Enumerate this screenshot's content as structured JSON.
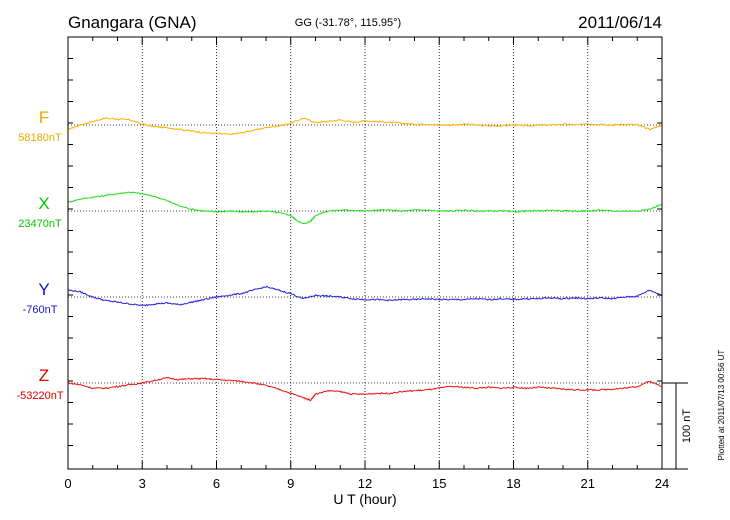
{
  "chart_data": {
    "type": "line",
    "title": "Gnangara (GNA)",
    "subtitle": "GG (-31.78°, 115.95°)",
    "date": "2011/06/14",
    "xlabel": "U T (hour)",
    "xlim": [
      0,
      24
    ],
    "x_ticks": [
      "0",
      "3",
      "6",
      "9",
      "12",
      "15",
      "18",
      "21",
      "24"
    ],
    "scale_bar": {
      "label": "100 nT",
      "value": 100
    },
    "footer": "Plotted at 2011/07/13 00:56 UT",
    "grid": true,
    "series": [
      {
        "name": "F",
        "baseline_label": "58180nT",
        "color": "#f0a800",
        "line_color": "#ffb000",
        "x": [
          0,
          0.5,
          1,
          1.5,
          2,
          2.5,
          3,
          3.5,
          4,
          4.5,
          5,
          5.5,
          6,
          6.5,
          7,
          7.5,
          8,
          8.5,
          9,
          9.5,
          10,
          10.5,
          11,
          11.5,
          12,
          12.5,
          13,
          13.5,
          14,
          14.5,
          15,
          15.5,
          16,
          16.5,
          17,
          17.5,
          18,
          18.5,
          19,
          19.5,
          20,
          20.5,
          21,
          21.5,
          22,
          22.5,
          23,
          23.5,
          24
        ],
        "values": [
          -5,
          0,
          4,
          8,
          7,
          6,
          1,
          -2,
          -3,
          -5,
          -7,
          -9,
          -10,
          -11,
          -9,
          -6,
          -3,
          -1,
          2,
          8,
          3,
          4,
          6,
          3,
          5,
          4,
          3,
          2,
          1,
          1,
          0,
          0,
          1,
          0,
          -1,
          -1,
          0,
          -1,
          0,
          0,
          1,
          0,
          1,
          1,
          0,
          1,
          0,
          -5,
          0
        ]
      },
      {
        "name": "X",
        "baseline_label": "23470nT",
        "color": "#00c800",
        "line_color": "#22dd22",
        "x": [
          0,
          0.5,
          1,
          1.5,
          2,
          2.5,
          3,
          3.5,
          4,
          4.5,
          5,
          5.5,
          6,
          6.5,
          7,
          7.5,
          8,
          8.5,
          9,
          9.2,
          9.5,
          9.8,
          10,
          10.5,
          11,
          11.5,
          12,
          12.5,
          13,
          13.5,
          14,
          14.5,
          15,
          15.5,
          16,
          16.5,
          17,
          17.5,
          18,
          18.5,
          19,
          19.5,
          20,
          20.5,
          21,
          21.5,
          22,
          22.5,
          23,
          23.5,
          24
        ],
        "values": [
          10,
          14,
          16,
          18,
          20,
          22,
          20,
          17,
          12,
          6,
          2,
          0,
          -1,
          0,
          -1,
          -1,
          0,
          -2,
          -5,
          -10,
          -15,
          -12,
          -5,
          0,
          1,
          1,
          0,
          1,
          1,
          0,
          1,
          1,
          0,
          0,
          1,
          0,
          0,
          0,
          -1,
          0,
          0,
          1,
          0,
          0,
          0,
          1,
          0,
          0,
          0,
          2,
          8
        ]
      },
      {
        "name": "Y",
        "baseline_label": "-760nT",
        "color": "#1414c8",
        "line_color": "#2020dd",
        "x": [
          0,
          0.5,
          1,
          1.5,
          2,
          2.5,
          3,
          3.5,
          4,
          4.5,
          5,
          5.5,
          6,
          6.5,
          7,
          7.5,
          8,
          8.5,
          9,
          9.5,
          10,
          10.5,
          11,
          11.5,
          12,
          12.5,
          13,
          13.5,
          14,
          14.5,
          15,
          15.5,
          16,
          16.5,
          17,
          17.5,
          18,
          18.5,
          19,
          19.5,
          20,
          20.5,
          21,
          21.5,
          22,
          22.5,
          23,
          23.5,
          24
        ],
        "values": [
          8,
          6,
          0,
          -4,
          -6,
          -8,
          -10,
          -8,
          -7,
          -9,
          -6,
          -3,
          0,
          2,
          4,
          8,
          12,
          8,
          4,
          -2,
          2,
          1,
          0,
          -2,
          -3,
          -3,
          -4,
          -3,
          -3,
          -2,
          -3,
          -3,
          -3,
          -2,
          -3,
          -2,
          -3,
          -2,
          -2,
          -1,
          -2,
          -1,
          -2,
          -1,
          -2,
          0,
          1,
          8,
          2
        ]
      },
      {
        "name": "Z",
        "baseline_label": "-53220nT",
        "color": "#dc0000",
        "line_color": "#ee1111",
        "x": [
          0,
          0.5,
          1,
          1.5,
          2,
          2.5,
          3,
          3.5,
          4,
          4.5,
          5,
          5.5,
          6,
          6.5,
          7,
          7.5,
          8,
          8.5,
          9,
          9.5,
          9.8,
          10,
          10.5,
          11,
          11.5,
          12,
          12.5,
          13,
          13.5,
          14,
          14.5,
          15,
          15.5,
          16,
          16.5,
          17,
          17.5,
          18,
          18.5,
          19,
          19.5,
          20,
          20.5,
          21,
          21.5,
          22,
          22.5,
          23,
          23.5,
          24
        ],
        "values": [
          0,
          -2,
          -6,
          -6,
          -4,
          -2,
          0,
          3,
          6,
          4,
          5,
          5,
          4,
          3,
          2,
          0,
          -3,
          -7,
          -12,
          -17,
          -20,
          -13,
          -9,
          -10,
          -13,
          -13,
          -12,
          -12,
          -10,
          -9,
          -8,
          -6,
          -4,
          -5,
          -6,
          -5,
          -6,
          -5,
          -6,
          -5,
          -6,
          -7,
          -8,
          -8,
          -8,
          -7,
          -6,
          -4,
          2,
          -4
        ]
      }
    ]
  }
}
